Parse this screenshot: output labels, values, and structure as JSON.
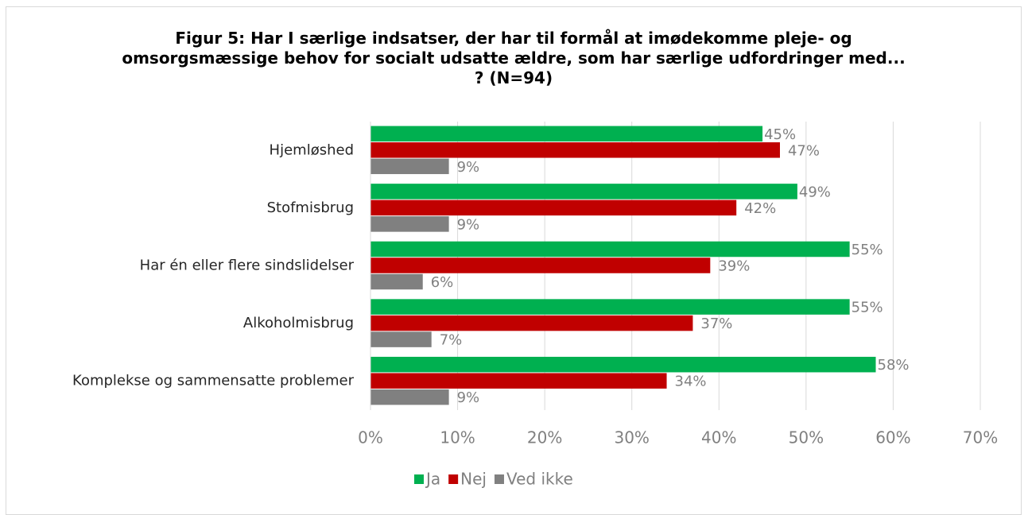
{
  "chart_data": {
    "type": "bar",
    "orientation": "horizontal",
    "title": "Figur 5: Har I særlige indsatser, der har til formål at imødekomme pleje- og omsorgsmæssige behov for socialt udsatte ældre, som har særlige udfordringer med... ? (N=94)",
    "categories": [
      "Hjemløshed",
      "Stofmisbrug",
      "Har én eller flere sindslidelser",
      "Alkoholmisbrug",
      "Komplekse og sammensatte problemer"
    ],
    "series": [
      {
        "name": "Ja",
        "color": "#00b050",
        "values": [
          45,
          49,
          55,
          55,
          58
        ],
        "value_labels": [
          "45%",
          "49%",
          "55%",
          "55%",
          "58%"
        ]
      },
      {
        "name": "Nej",
        "color": "#c00000",
        "values": [
          47,
          42,
          39,
          37,
          34
        ],
        "value_labels": [
          "47%",
          "42%",
          "39%",
          "37%",
          "34%"
        ]
      },
      {
        "name": "Ved ikke",
        "color": "#808080",
        "values": [
          9,
          9,
          6,
          7,
          9
        ],
        "value_labels": [
          "9%",
          "9%",
          "6%",
          "7%",
          "9%"
        ]
      }
    ],
    "xlim": [
      0,
      70
    ],
    "xticks": [
      {
        "value": 0,
        "label": "0%"
      },
      {
        "value": 10,
        "label": "10%"
      },
      {
        "value": 20,
        "label": "20%"
      },
      {
        "value": 30,
        "label": "30%"
      },
      {
        "value": 40,
        "label": "40%"
      },
      {
        "value": 50,
        "label": "50%"
      },
      {
        "value": 60,
        "label": "60%"
      },
      {
        "value": 70,
        "label": "70%"
      }
    ],
    "grid": true,
    "legend": "bottom"
  }
}
